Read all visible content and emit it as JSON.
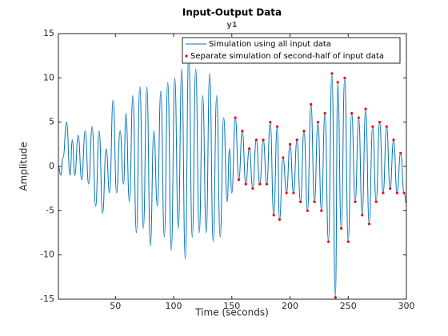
{
  "chart_data": {
    "type": "line",
    "title": "Input-Output Data",
    "subtitle": "y1",
    "xlabel": "Time (seconds)",
    "ylabel": "Amplitude",
    "xlim": [
      1,
      300
    ],
    "ylim": [
      -15,
      15
    ],
    "xticks": [
      50,
      100,
      150,
      200,
      250,
      300
    ],
    "yticks": [
      -15,
      -10,
      -5,
      0,
      5,
      10,
      15
    ],
    "legend": "top-right",
    "series": [
      {
        "name": "Simulation using all input data",
        "color": "#0072bd",
        "style": "line",
        "x": [
          1,
          3,
          5,
          8,
          11,
          13,
          15,
          18,
          21,
          24,
          27,
          30,
          33,
          36,
          39,
          42,
          45,
          48,
          51,
          54,
          57,
          59,
          62,
          65,
          68,
          71,
          74,
          77,
          80,
          83,
          86,
          89,
          92,
          95,
          98,
          101,
          104,
          107,
          110,
          113,
          116,
          119,
          122,
          125,
          128,
          131,
          134,
          137,
          140,
          143,
          146,
          148,
          150,
          153,
          156,
          159,
          162,
          165,
          168,
          171,
          174,
          177,
          180,
          183,
          186,
          189,
          191,
          194,
          197,
          200,
          203,
          206,
          209,
          212,
          215,
          218,
          221,
          224,
          227,
          230,
          233,
          236,
          239,
          241,
          244,
          247,
          250,
          253,
          256,
          259,
          262,
          265,
          268,
          271,
          274,
          277,
          280,
          283,
          286,
          289,
          292,
          295,
          298,
          300
        ],
        "values": [
          0,
          -1,
          1,
          5,
          -1,
          3,
          -1,
          3.5,
          -1.5,
          4,
          -2,
          4.5,
          -4.5,
          4,
          -5.3,
          2,
          -3,
          7.5,
          -3,
          4,
          -2,
          6,
          -4,
          8,
          -7.5,
          9,
          -7,
          9,
          -9,
          4,
          -4.5,
          8.5,
          -8,
          9.5,
          -9.5,
          10,
          -7,
          11,
          -10.5,
          12.8,
          -8,
          11,
          -7.5,
          8,
          -7.5,
          10.5,
          -8.5,
          8,
          -8,
          5.5,
          -4,
          2,
          -3,
          5.5,
          -1.5,
          4,
          -2,
          2,
          -2.5,
          3,
          -2,
          3,
          -2,
          5,
          -5.5,
          4.5,
          -6,
          1,
          -3,
          2.5,
          -3,
          3,
          -4,
          4,
          -5,
          7,
          -4,
          5,
          -5,
          6,
          -8.5,
          10.5,
          -14.8,
          9.5,
          -7,
          10,
          -8.5,
          6,
          -4,
          5.5,
          -5.5,
          6.5,
          -6.5,
          4.5,
          -4,
          5,
          -3,
          4.5,
          -2.5,
          3,
          -3,
          1.5,
          -3,
          -4
        ]
      },
      {
        "name": "Separate simulation of second-half of input data",
        "color": "#ff0000",
        "style": "dots",
        "x": [
          153,
          156,
          159,
          162,
          165,
          168,
          171,
          174,
          177,
          180,
          183,
          186,
          189,
          191,
          194,
          197,
          200,
          203,
          206,
          209,
          212,
          215,
          218,
          221,
          224,
          227,
          230,
          233,
          236,
          239,
          241,
          244,
          247,
          250,
          253,
          256,
          259,
          262,
          265,
          268,
          271,
          274,
          277,
          280,
          283,
          286,
          289,
          292,
          295,
          298,
          300
        ],
        "values": [
          5.5,
          -1.5,
          4,
          -2,
          2,
          -2.5,
          3,
          -2,
          3,
          -2,
          5,
          -5.5,
          4.5,
          -6,
          1,
          -3,
          2.5,
          -3,
          3,
          -4,
          4,
          -5,
          7,
          -4,
          5,
          -5,
          6,
          -8.5,
          10.5,
          -14.8,
          9.5,
          -7,
          10,
          -8.5,
          6,
          -4,
          5.5,
          -5.5,
          6.5,
          -6.5,
          4.5,
          -4,
          5,
          -3,
          4.5,
          -2.5,
          3,
          -3,
          1.5,
          -3,
          -4
        ]
      }
    ]
  }
}
